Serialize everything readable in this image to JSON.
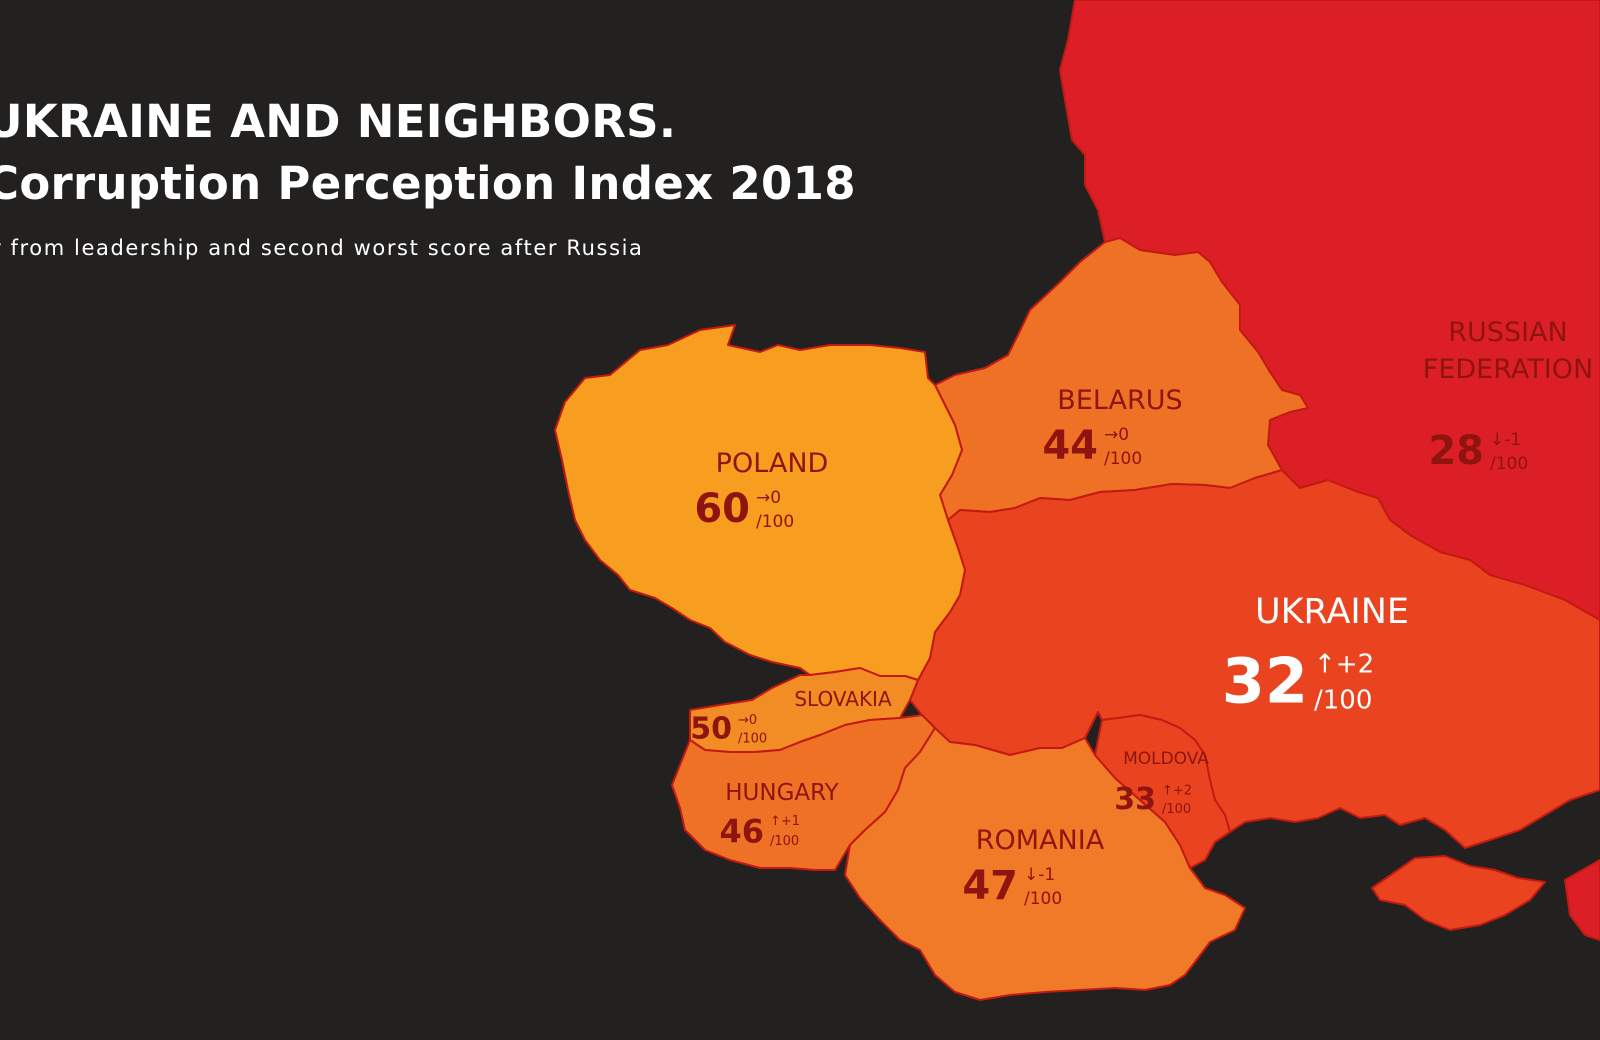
{
  "header": {
    "title_line1": "UKRAINE AND NEIGHBORS.",
    "title_line2": "Corruption Perception Index 2018",
    "subtitle": "r from leadership and second worst score after Russia"
  },
  "colors": {
    "background": "#222120",
    "russia": "#dc1f26",
    "ukraine": "#e9441f",
    "moldova": "#e9441f",
    "belarus": "#ee7125",
    "hungary": "#ee7125",
    "romania": "#f07a27",
    "slovakia": "#f28c25",
    "poland": "#f79d20",
    "label_dark": "#8f1410",
    "label_light": "#ffffff",
    "border": "#c21a12"
  },
  "countries": [
    {
      "id": "russia",
      "name": "RUSSIAN FEDERATION",
      "name_lines": [
        "RUSSIAN",
        "FEDERATION"
      ],
      "score": "28",
      "arrow": "↓",
      "change": "-1",
      "max": "/100"
    },
    {
      "id": "ukraine",
      "name": "UKRAINE",
      "name_lines": [
        "UKRAINE"
      ],
      "score": "32",
      "arrow": "↑",
      "change": "+2",
      "max": "/100"
    },
    {
      "id": "belarus",
      "name": "BELARUS",
      "name_lines": [
        "BELARUS"
      ],
      "score": "44",
      "arrow": "→",
      "change": "0",
      "max": "/100"
    },
    {
      "id": "poland",
      "name": "POLAND",
      "name_lines": [
        "POLAND"
      ],
      "score": "60",
      "arrow": "→",
      "change": "0",
      "max": "/100"
    },
    {
      "id": "slovakia",
      "name": "SLOVAKIA",
      "name_lines": [
        "SLOVAKIA"
      ],
      "score": "50",
      "arrow": "→",
      "change": "0",
      "max": "/100"
    },
    {
      "id": "hungary",
      "name": "HUNGARY",
      "name_lines": [
        "HUNGARY"
      ],
      "score": "46",
      "arrow": "↑",
      "change": "+1",
      "max": "/100"
    },
    {
      "id": "moldova",
      "name": "MOLDOVA",
      "name_lines": [
        "MOLDOVA"
      ],
      "score": "33",
      "arrow": "↑",
      "change": "+2",
      "max": "/100"
    },
    {
      "id": "romania",
      "name": "ROMANIA",
      "name_lines": [
        "ROMANIA"
      ],
      "score": "47",
      "arrow": "↓",
      "change": "-1",
      "max": "/100"
    }
  ]
}
